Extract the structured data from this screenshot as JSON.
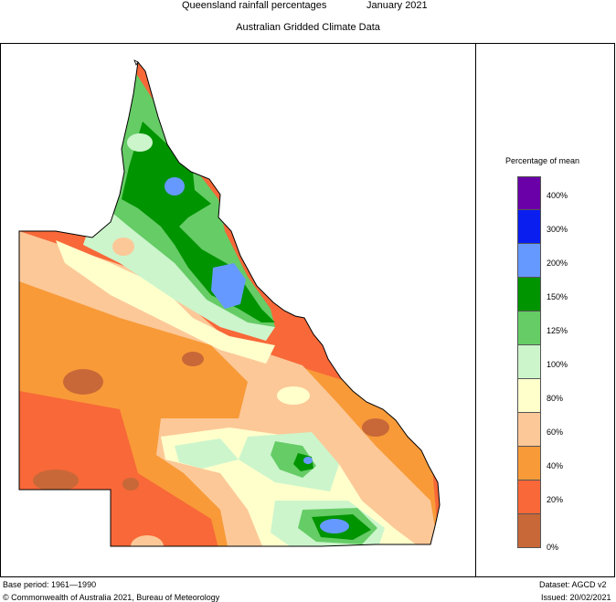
{
  "header": {
    "title_left": "Queensland rainfall percentages",
    "title_right": "January 2021",
    "subtitle": "Australian Gridded Climate Data"
  },
  "legend": {
    "title": "Percentage of mean",
    "bands": [
      {
        "label": "400%",
        "color": "#6a00a8"
      },
      {
        "label": "300%",
        "color": "#0a1ef0"
      },
      {
        "label": "200%",
        "color": "#6699ff"
      },
      {
        "label": "150%",
        "color": "#009400"
      },
      {
        "label": "125%",
        "color": "#66cc66"
      },
      {
        "label": "100%",
        "color": "#ccf5cc"
      },
      {
        "label": "80%",
        "color": "#ffffcc"
      },
      {
        "label": "60%",
        "color": "#fcc898"
      },
      {
        "label": "40%",
        "color": "#f89a38"
      },
      {
        "label": "20%",
        "color": "#f86838"
      },
      {
        "label": "0%",
        "color": "#c86838"
      }
    ]
  },
  "footer": {
    "base_period": "Base period: 1961—1990",
    "dataset": "Dataset: AGCD v2",
    "copyright": "© Commonwealth of Australia 2021, Bureau of Meteorology",
    "issued": "Issued: 20/02/2021"
  }
}
